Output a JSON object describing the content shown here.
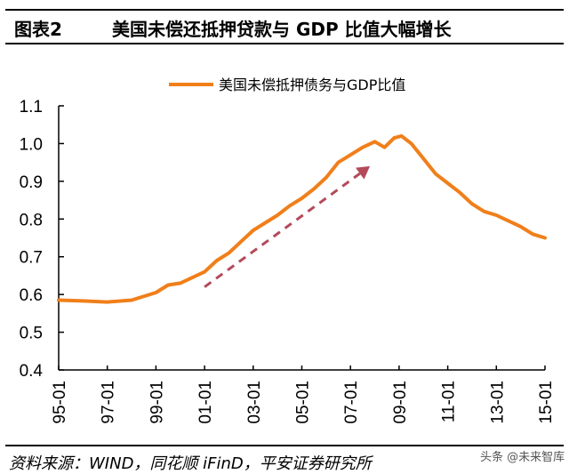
{
  "header": {
    "label": "图表2",
    "title": "美国未偿还抵押贷款与 GDP 比值大幅增长"
  },
  "footer": {
    "source": "资料来源：WIND，同花顺 iFinD，平安证券研究所",
    "watermark": "头条 @未来智库"
  },
  "colors": {
    "series": "#f07f1a",
    "arrow": "#b34a5a",
    "axis": "#000000"
  },
  "chart_data": {
    "type": "line",
    "title": "美国未偿还抵押贷款与 GDP 比值大幅增长",
    "xlabel": "",
    "ylabel": "",
    "ylim": [
      0.4,
      1.1
    ],
    "xlim": [
      1995,
      2015
    ],
    "yticks": [
      0.4,
      0.5,
      0.6,
      0.7,
      0.8,
      0.9,
      1.0,
      1.1
    ],
    "ytick_labels": [
      "0.4",
      "0.5",
      "0.6",
      "0.7",
      "0.8",
      "0.9",
      "1.0",
      "1.1"
    ],
    "xticks": [
      1995,
      1997,
      1999,
      2001,
      2003,
      2005,
      2007,
      2009,
      2011,
      2013,
      2015
    ],
    "xtick_labels": [
      "95-01",
      "97-01",
      "99-01",
      "01-01",
      "03-01",
      "05-01",
      "07-01",
      "09-01",
      "11-01",
      "13-01",
      "15-01"
    ],
    "grid": false,
    "legend": {
      "position": "top-center",
      "entries": [
        "美国未偿抵押债务与GDP比值"
      ]
    },
    "series": [
      {
        "name": "美国未偿抵押债务与GDP比值",
        "x": [
          1995.0,
          1996.0,
          1997.0,
          1998.0,
          1999.0,
          1999.5,
          2000.0,
          2000.5,
          2001.0,
          2001.5,
          2002.0,
          2002.5,
          2003.0,
          2003.5,
          2004.0,
          2004.5,
          2005.0,
          2005.5,
          2006.0,
          2006.5,
          2007.0,
          2007.5,
          2008.0,
          2008.4,
          2008.8,
          2009.1,
          2009.5,
          2010.0,
          2010.5,
          2011.0,
          2011.5,
          2012.0,
          2012.5,
          2013.0,
          2013.5,
          2014.0,
          2014.5,
          2015.0
        ],
        "values": [
          0.585,
          0.583,
          0.58,
          0.585,
          0.605,
          0.625,
          0.63,
          0.645,
          0.66,
          0.69,
          0.71,
          0.74,
          0.77,
          0.79,
          0.81,
          0.835,
          0.855,
          0.88,
          0.91,
          0.95,
          0.97,
          0.99,
          1.005,
          0.99,
          1.015,
          1.02,
          1.0,
          0.96,
          0.92,
          0.895,
          0.87,
          0.84,
          0.82,
          0.81,
          0.795,
          0.78,
          0.76,
          0.75
        ]
      }
    ],
    "annotations": [
      {
        "type": "dashed-arrow",
        "from": [
          2001.0,
          0.62
        ],
        "to": [
          2007.8,
          0.94
        ]
      }
    ]
  }
}
